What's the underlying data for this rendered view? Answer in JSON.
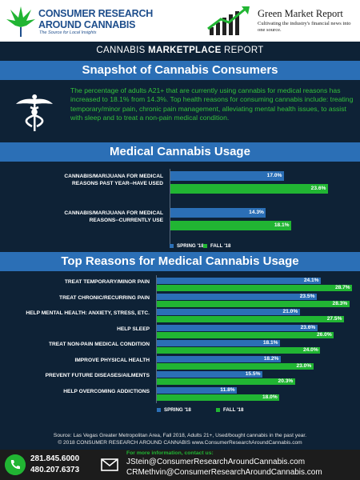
{
  "header": {
    "brand_line1": "CONSUMER RESEARCH",
    "brand_line2": "AROUND CANNABIS",
    "brand_tagline": "The Source for Local Insights",
    "partner_title": "Green Market Report",
    "partner_tagline": "Cultivating the industry's financial news into one source."
  },
  "report_banner": {
    "prefix": "CANNABIS ",
    "bold": "MARKETPLACE",
    "suffix": " REPORT"
  },
  "snapshot": {
    "title": "Snapshot of Cannabis Consumers",
    "text": "The percentage of adults A21+ that are currently using cannabis for medical reasons has increased to 18.1% from 14.3%. Top health reasons for consuming cannabis include: treating temporary/minor pain, chronic pain management, alleviating mental health issues, to assist with sleep and to treat  a non-pain medical condition."
  },
  "chart_data": [
    {
      "type": "bar",
      "title": "Medical Cannabis Usage",
      "categories": [
        "CANNABIS/MARIJUANA FOR MEDICAL REASONS PAST YEAR--HAVE USED",
        "CANNABIS/MARIJUANA FOR MEDICAL REASONS--CURRENTLY USE"
      ],
      "series": [
        {
          "name": "SPRING '18",
          "values": [
            17.0,
            14.3
          ],
          "labels": [
            "17.0%",
            "14.3%"
          ],
          "color": "#2b6fb6"
        },
        {
          "name": "FALL '18",
          "values": [
            23.6,
            18.1
          ],
          "labels": [
            "23.6%",
            "18.1%"
          ],
          "color": "#21b533"
        }
      ],
      "legend": "bottom",
      "xlim": [
        0,
        30
      ]
    },
    {
      "type": "bar",
      "title": "Top Reasons for Medical Cannabis Usage",
      "categories": [
        "TREAT TEMPORARY/MINOR PAIN",
        "TREAT CHRONIC/RECURRING PAIN",
        "HELP MENTAL HEALTH: ANXIETY, STRESS, ETC.",
        "HELP SLEEP",
        "TREAT NON-PAIN MEDICAL CONDITION",
        "IMPROVE PHYSICAL HEALTH",
        "PREVENT FUTURE DISEASES/AILMENTS",
        "HELP OVERCOMING ADDICTIONS"
      ],
      "series": [
        {
          "name": "SPRING '18",
          "values": [
            24.1,
            23.5,
            21.0,
            23.6,
            18.1,
            18.2,
            15.5,
            11.8
          ],
          "labels": [
            "24.1%",
            "23.5%",
            "21.0%",
            "23.6%",
            "18.1%",
            "18.2%",
            "15.5%",
            "11.8%"
          ],
          "color": "#2b6fb6"
        },
        {
          "name": "FALL '18",
          "values": [
            28.7,
            28.3,
            27.5,
            26.0,
            24.0,
            23.0,
            20.3,
            18.0
          ],
          "labels": [
            "28.7%",
            "28.3%",
            "27.5%",
            "26.0%",
            "24.0%",
            "23.0%",
            "20.3%",
            "18.0%"
          ],
          "color": "#21b533"
        }
      ],
      "legend": "bottom",
      "xlim": [
        0,
        30
      ]
    }
  ],
  "legend_labels": {
    "spring_caps": "SPRING '18",
    "fall_caps": "FALL '18",
    "spring_lower": "SPRING '18",
    "fall_lower": "FALL '18"
  },
  "source": {
    "line1": "Source: Las Vegas Greater Metropolitan Area, Fall 2018, Adults 21+, Used/bought cannabis in the past year.",
    "line2": "© 2018 CONSUMER RESEARCH AROUND CANNABIS   www.ConsumerResearchAroundCannabis.com"
  },
  "footer": {
    "phone1": "281.845.6000",
    "phone2": "480.207.6373",
    "info_label": "For more information, contact us:",
    "email1": "JStein@ConsumerResearchAroundCannabis.com",
    "email2": "CRMethvin@ConsumerResearchAroundCannabis.com"
  },
  "colors": {
    "navy": "#0e2236",
    "blue": "#2b6fb6",
    "green": "#21b533",
    "text_green": "#34c03a"
  }
}
